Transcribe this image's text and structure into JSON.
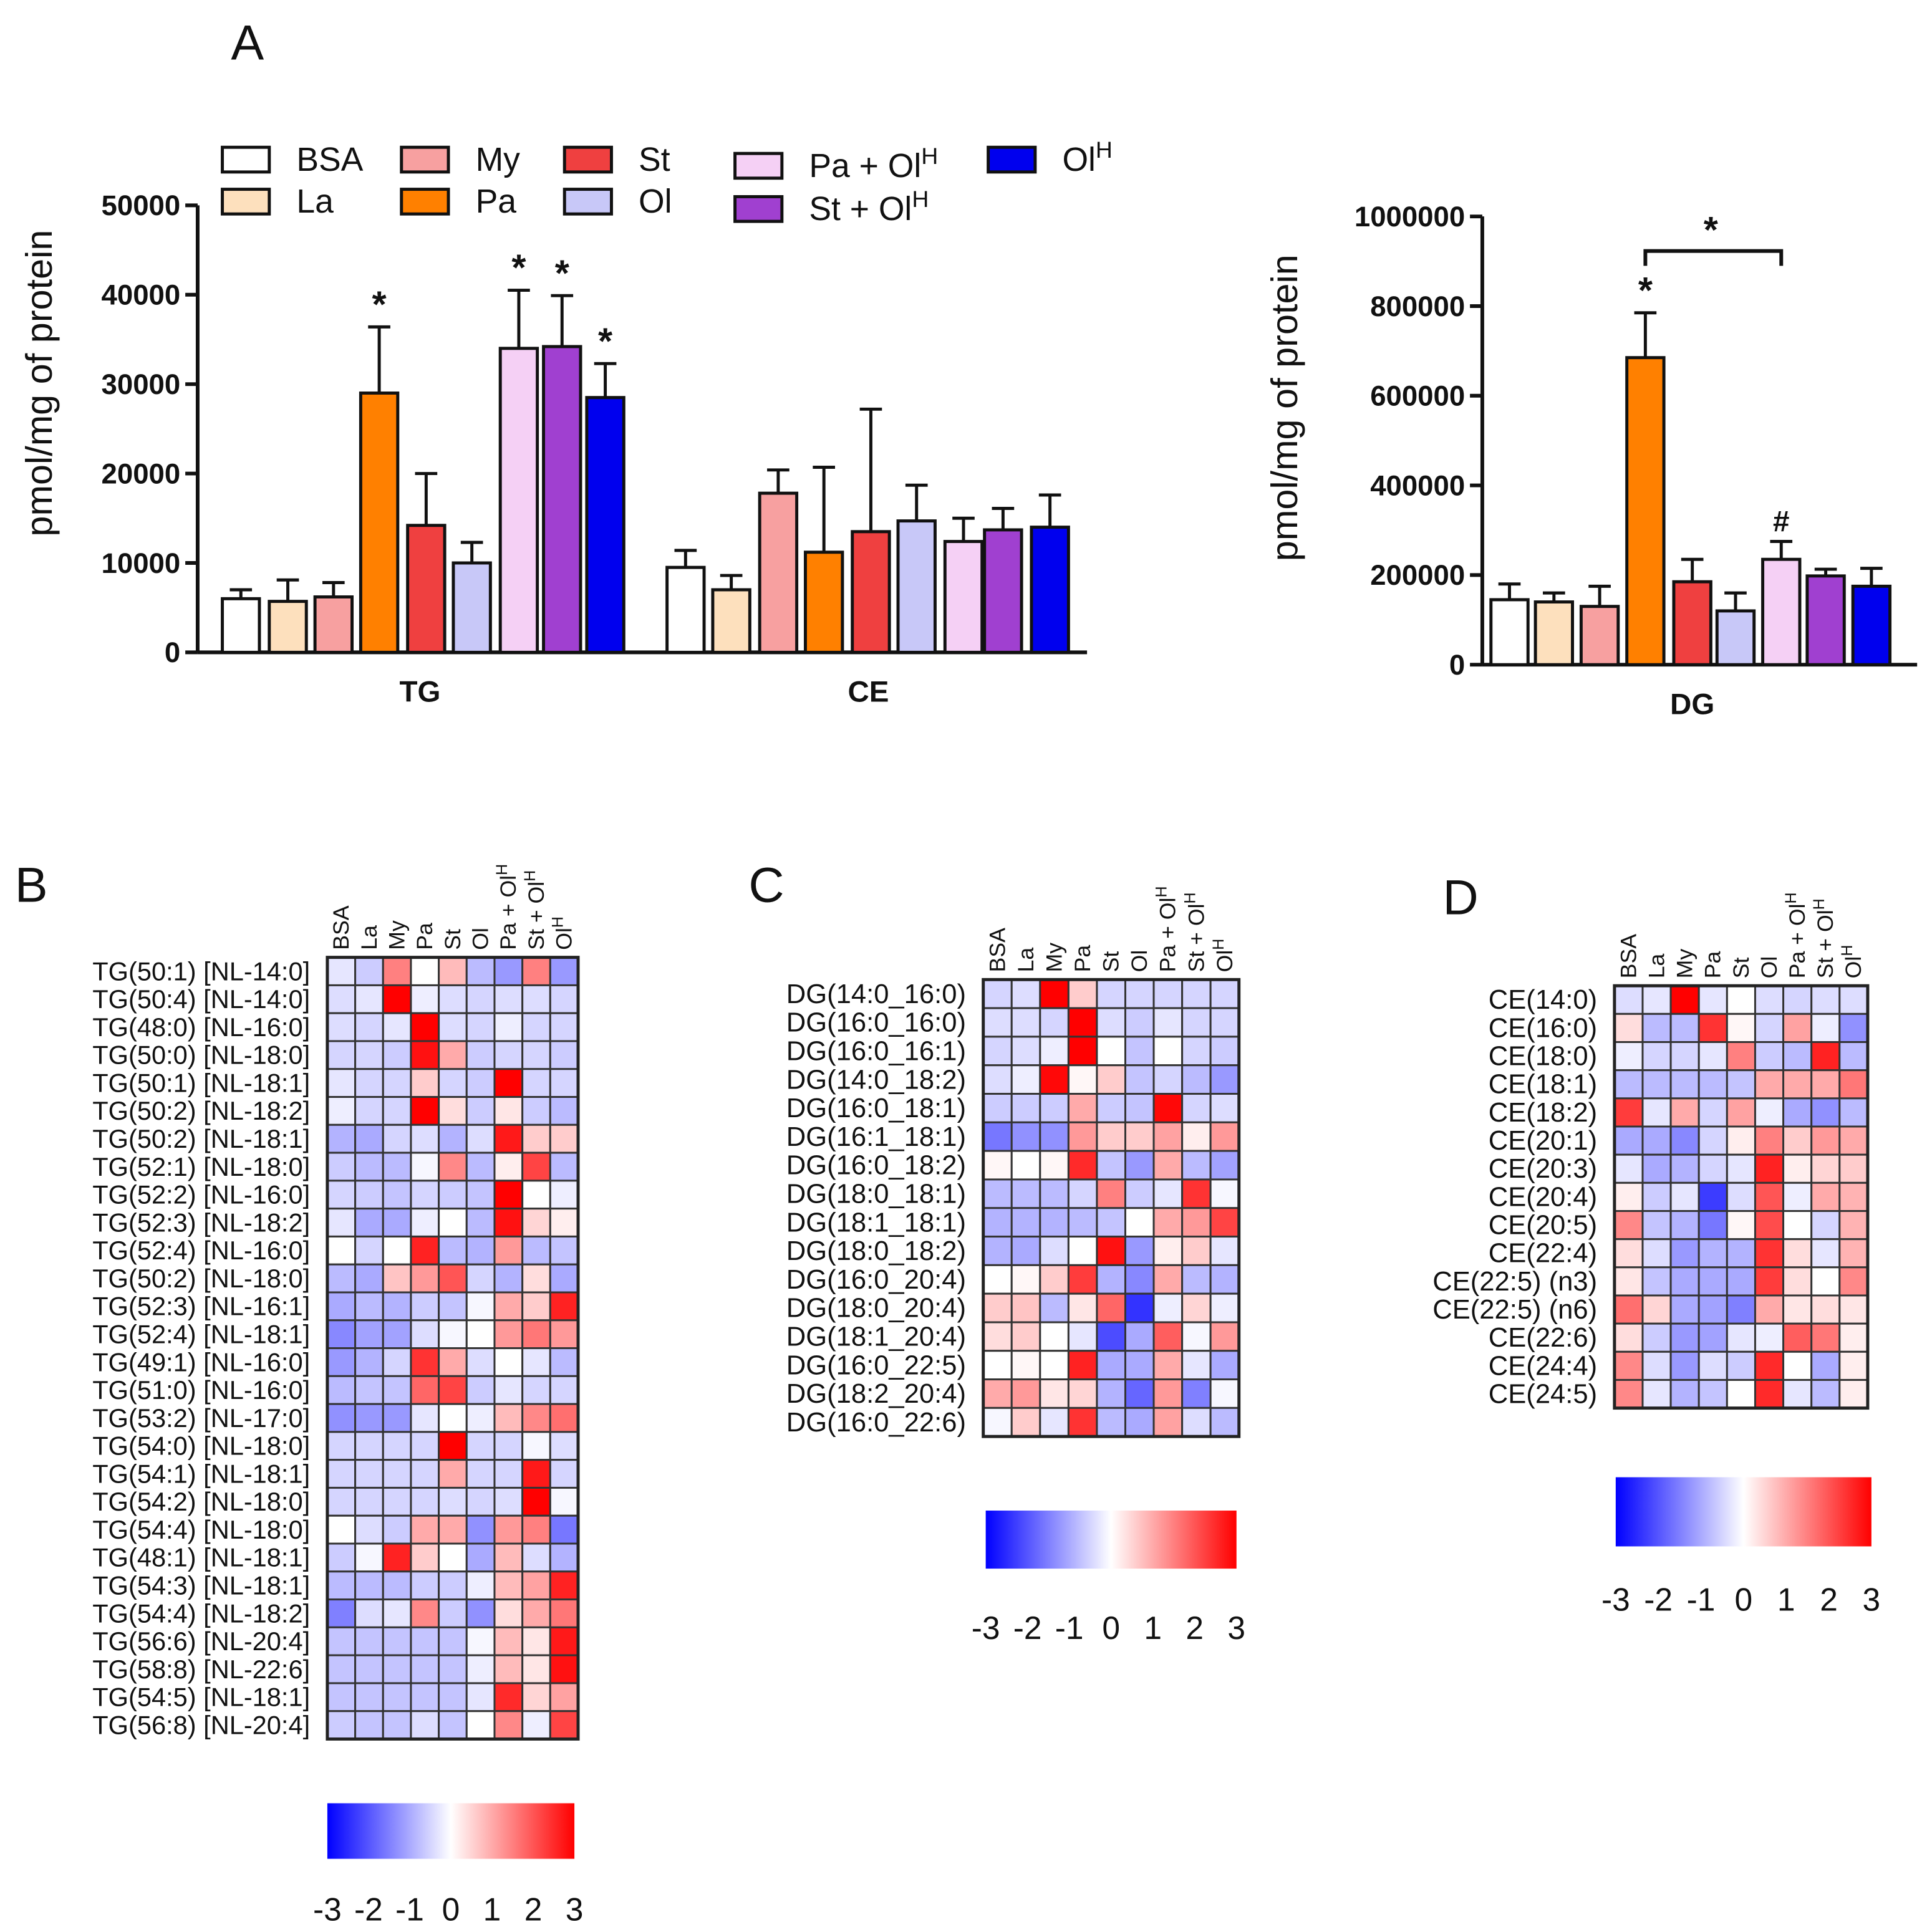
{
  "panel_labels": {
    "a": "A",
    "b": "B",
    "c": "C",
    "d": "D"
  },
  "groups": [
    {
      "name": "BSA",
      "sup": "",
      "color": "#ffffff"
    },
    {
      "name": "La",
      "sup": "",
      "color": "#fde0bd"
    },
    {
      "name": "My",
      "sup": "",
      "color": "#f7a0a0"
    },
    {
      "name": "Pa",
      "sup": "",
      "color": "#ff8000"
    },
    {
      "name": "St",
      "sup": "",
      "color": "#ef4040"
    },
    {
      "name": "Ol",
      "sup": "",
      "color": "#c8c8f8"
    },
    {
      "name": "Pa + Ol",
      "sup": "H",
      "color": "#f5d0f5"
    },
    {
      "name": "St + Ol",
      "sup": "H",
      "color": "#a040d0"
    },
    {
      "name": "Ol",
      "sup": "H",
      "color": "#0000ee"
    }
  ],
  "chart_data": [
    {
      "type": "bar",
      "title": "",
      "ylabel": "pmol/mg of protein",
      "ylim": [
        0,
        50000
      ],
      "yticks": [
        "0",
        "10000",
        "20000",
        "30000",
        "40000",
        "50000"
      ],
      "categories": [
        "TG",
        "CE"
      ],
      "series_values": [
        [
          6000,
          5700,
          6200,
          29000,
          14200,
          10000,
          34000,
          34200,
          28500
        ],
        [
          9500,
          7000,
          17800,
          11200,
          13500,
          14700,
          12400,
          13700,
          14000
        ]
      ],
      "errors": [
        [
          1000,
          2400,
          1600,
          7400,
          5800,
          2300,
          6500,
          5700,
          3800
        ],
        [
          1900,
          1600,
          2600,
          9500,
          13700,
          4000,
          2600,
          2400,
          3600
        ]
      ],
      "annotations": [
        [
          "",
          "",
          "",
          "*",
          "",
          "",
          "*",
          "*",
          "*"
        ],
        [
          "",
          "",
          "",
          "",
          "",
          "",
          "",
          "",
          ""
        ]
      ]
    },
    {
      "type": "bar",
      "ylabel": "pmol/mg of protein",
      "ylim": [
        0,
        1000000
      ],
      "yticks": [
        "0",
        "200000",
        "400000",
        "600000",
        "800000",
        "1000000"
      ],
      "categories": [
        "DG"
      ],
      "series_values": [
        [
          145000,
          140000,
          130000,
          685000,
          185000,
          120000,
          235000,
          198000,
          175000
        ]
      ],
      "errors": [
        [
          35000,
          20000,
          45000,
          100000,
          50000,
          40000,
          40000,
          15000,
          40000
        ]
      ],
      "annotations": [
        [
          "",
          "",
          "",
          "*",
          "",
          "",
          "#",
          "",
          ""
        ]
      ],
      "bracket": {
        "from": "Pa",
        "to": "Pa + OlH",
        "label": "*"
      }
    },
    {
      "type": "heatmap",
      "panel": "B",
      "scale_range": [
        -3,
        3
      ],
      "scale_ticks": [
        "-3",
        "-2",
        "-1",
        "0",
        "1",
        "2",
        "3"
      ],
      "rows": [
        "TG(50:1) [NL-14:0]",
        "TG(50:4) [NL-14:0]",
        "TG(48:0) [NL-16:0]",
        "TG(50:0) [NL-18:0]",
        "TG(50:1) [NL-18:1]",
        "TG(50:2) [NL-18:2]",
        "TG(50:2) [NL-18:1]",
        "TG(52:1) [NL-18:0]",
        "TG(52:2) [NL-16:0]",
        "TG(52:3) [NL-18:2]",
        "TG(52:4) [NL-16:0]",
        "TG(50:2) [NL-18:0]",
        "TG(52:3) [NL-16:1]",
        "TG(52:4) [NL-18:1]",
        "TG(49:1) [NL-16:0]",
        "TG(51:0) [NL-16:0]",
        "TG(53:2) [NL-17:0]",
        "TG(54:0) [NL-18:0]",
        "TG(54:1) [NL-18:1]",
        "TG(54:2) [NL-18:0]",
        "TG(54:4) [NL-18:0]",
        "TG(48:1) [NL-18:1]",
        "TG(54:3) [NL-18:1]",
        "TG(54:4) [NL-18:2]",
        "TG(56:6) [NL-20:4]",
        "TG(58:8) [NL-22:6]",
        "TG(54:5) [NL-18:1]",
        "TG(56:8) [NL-20:4]"
      ],
      "values": [
        [
          -0.3,
          -0.6,
          1.5,
          0,
          0.8,
          -0.8,
          -1.2,
          1.5,
          -1.2
        ],
        [
          -0.4,
          -0.3,
          3,
          -0.2,
          -0.4,
          -0.5,
          -0.4,
          -0.4,
          -0.5
        ],
        [
          -0.4,
          -0.5,
          -0.3,
          3,
          -0.4,
          -0.5,
          -0.2,
          -0.5,
          -0.5
        ],
        [
          -0.5,
          -0.5,
          -0.6,
          2.8,
          1,
          -0.6,
          -0.5,
          -0.5,
          -0.6
        ],
        [
          -0.3,
          -0.5,
          -0.5,
          0.6,
          -0.5,
          -0.6,
          3,
          -0.5,
          -0.5
        ],
        [
          -0.2,
          -0.5,
          -0.5,
          3,
          0.4,
          -0.6,
          0.3,
          -0.6,
          -0.8
        ],
        [
          -0.9,
          -1,
          -0.5,
          -0.4,
          -0.9,
          -0.4,
          2.7,
          0.6,
          0.6
        ],
        [
          -0.6,
          -0.8,
          -0.8,
          -0.1,
          1.4,
          -0.8,
          0.2,
          2.2,
          -0.8
        ],
        [
          -0.5,
          -0.6,
          -0.7,
          -0.5,
          -0.6,
          -0.7,
          3,
          0,
          -0.2
        ],
        [
          -0.3,
          -1,
          -1,
          -0.2,
          0,
          -0.8,
          2.8,
          0.5,
          0.2
        ],
        [
          0,
          -0.5,
          0,
          2.6,
          -0.8,
          -0.9,
          1.2,
          -0.8,
          -0.7
        ],
        [
          -0.8,
          -1,
          0.7,
          1.2,
          2,
          -0.5,
          -0.9,
          0.4,
          -1
        ],
        [
          -1,
          -0.8,
          -0.9,
          -0.6,
          -0.7,
          -0.1,
          1,
          0.6,
          2.6
        ],
        [
          -1.4,
          -1.1,
          -1.1,
          -0.4,
          -0.1,
          0,
          1.2,
          1.6,
          1.2
        ],
        [
          -1.2,
          -0.9,
          -0.5,
          2.4,
          1,
          -0.4,
          0,
          -0.3,
          -0.8
        ],
        [
          -0.8,
          -0.7,
          -0.7,
          1.8,
          2.2,
          -0.6,
          -0.3,
          -0.5,
          -0.5
        ],
        [
          -1.3,
          -1.2,
          -1.2,
          -0.3,
          0,
          -0.2,
          0.8,
          1.4,
          1.7
        ],
        [
          -0.5,
          -0.5,
          -0.5,
          -0.5,
          3,
          -0.5,
          -0.5,
          -0.1,
          -0.4
        ],
        [
          -0.5,
          -0.5,
          -0.5,
          -0.5,
          1,
          -0.5,
          -0.5,
          2.7,
          -0.5
        ],
        [
          -0.5,
          -0.5,
          -0.5,
          -0.5,
          -0.4,
          -0.5,
          -0.4,
          3,
          -0.1
        ],
        [
          0,
          -0.4,
          -0.6,
          1,
          1,
          -1.3,
          1.2,
          1.5,
          -1.6
        ],
        [
          -0.6,
          -0.1,
          2.6,
          0.6,
          0,
          -1,
          0.8,
          -0.4,
          -0.9
        ],
        [
          -0.8,
          -0.8,
          -0.8,
          -0.6,
          -0.6,
          -0.2,
          0.8,
          1.1,
          2.6
        ],
        [
          -1.5,
          -0.4,
          -0.3,
          1.4,
          -0.6,
          -1.3,
          0.4,
          1,
          1.6
        ],
        [
          -0.7,
          -0.7,
          -0.7,
          -0.7,
          -0.7,
          -0.1,
          0.8,
          0.3,
          2.7
        ],
        [
          -0.7,
          -0.7,
          -0.7,
          -0.7,
          -0.7,
          -0.2,
          0.8,
          0.3,
          2.8
        ],
        [
          -0.7,
          -0.7,
          -0.7,
          -0.7,
          -0.7,
          -0.3,
          2.5,
          0.5,
          1.1
        ],
        [
          -0.6,
          -0.7,
          -0.7,
          -0.4,
          -0.7,
          0,
          1.4,
          -0.2,
          2.2
        ]
      ]
    },
    {
      "type": "heatmap",
      "panel": "C",
      "scale_range": [
        -3,
        3
      ],
      "scale_ticks": [
        "-3",
        "-2",
        "-1",
        "0",
        "1",
        "2",
        "3"
      ],
      "rows": [
        "DG(14:0_16:0)",
        "DG(16:0_16:0)",
        "DG(16:0_16:1)",
        "DG(14:0_18:2)",
        "DG(16:0_18:1)",
        "DG(16:1_18:1)",
        "DG(16:0_18:2)",
        "DG(18:0_18:1)",
        "DG(18:1_18:1)",
        "DG(18:0_18:2)",
        "DG(16:0_20:4)",
        "DG(18:0_20:4)",
        "DG(18:1_20:4)",
        "DG(16:0_22:5)",
        "DG(18:2_20:4)",
        "DG(16:0_22:6)"
      ],
      "values": [
        [
          -0.5,
          -0.4,
          3,
          0.6,
          -0.5,
          -0.5,
          -0.5,
          -0.5,
          -0.5
        ],
        [
          -0.4,
          -0.4,
          -0.5,
          3,
          -0.4,
          -0.6,
          -0.3,
          -0.5,
          -0.5
        ],
        [
          -0.5,
          -0.4,
          -0.2,
          3,
          0,
          -0.7,
          0,
          -0.5,
          -0.6
        ],
        [
          -0.4,
          -0.2,
          2.9,
          0.1,
          0.6,
          -0.7,
          -0.5,
          -0.8,
          -1.2
        ],
        [
          -0.6,
          -0.6,
          -0.6,
          1,
          -0.6,
          -0.7,
          2.9,
          -0.5,
          -0.4
        ],
        [
          -1.6,
          -1.3,
          -1.3,
          1.2,
          0.6,
          0.6,
          1.1,
          0.2,
          1.2
        ],
        [
          0.1,
          0,
          0.1,
          2.5,
          -0.7,
          -1.2,
          1,
          -0.8,
          -1.1
        ],
        [
          -0.8,
          -0.8,
          -0.8,
          -0.5,
          1.5,
          -0.6,
          -0.3,
          2.4,
          -0.1
        ],
        [
          -0.9,
          -0.9,
          -0.9,
          -0.8,
          -0.7,
          0,
          1,
          1.2,
          2.2
        ],
        [
          -0.9,
          -1,
          -0.4,
          0,
          2.8,
          -1.2,
          0.2,
          0.6,
          -0.3
        ],
        [
          0,
          0.1,
          0.6,
          2.3,
          -0.9,
          -1.4,
          1,
          -0.8,
          -0.9
        ],
        [
          0.6,
          0.7,
          -0.8,
          0.3,
          1.8,
          -2.4,
          -0.2,
          0.5,
          -0.2
        ],
        [
          0.4,
          0.6,
          0,
          -0.3,
          -2.1,
          -1,
          1.9,
          -0.1,
          1.2
        ],
        [
          0,
          0.1,
          0,
          2.6,
          -1,
          -1,
          1,
          -0.3,
          -1
        ],
        [
          1,
          1.2,
          0.3,
          0.5,
          -0.9,
          -1.8,
          1.2,
          -1.5,
          -0.1
        ],
        [
          -0.1,
          0.6,
          -0.3,
          2.4,
          -0.8,
          -1,
          1.1,
          -0.4,
          -0.8
        ]
      ]
    },
    {
      "type": "heatmap",
      "panel": "D",
      "scale_range": [
        -3,
        3
      ],
      "scale_ticks": [
        "-3",
        "-2",
        "-1",
        "0",
        "1",
        "2",
        "3"
      ],
      "rows": [
        "CE(14:0)",
        "CE(16:0)",
        "CE(18:0)",
        "CE(18:1)",
        "CE(18:2)",
        "CE(20:1)",
        "CE(20:3)",
        "CE(20:4)",
        "CE(20:5)",
        "CE(22:4)",
        "CE(22:5) (n3)",
        "CE(22:5) (n6)",
        "CE(22:6)",
        "CE(24:4)",
        "CE(24:5)"
      ],
      "values": [
        [
          -0.4,
          -0.3,
          3,
          -0.3,
          0,
          -0.4,
          -0.5,
          -0.4,
          -0.4
        ],
        [
          0.4,
          -0.8,
          -0.8,
          2.4,
          0.1,
          -0.5,
          1.1,
          -0.2,
          -1.3
        ],
        [
          -0.2,
          -0.5,
          -0.5,
          -0.3,
          1.5,
          -0.6,
          -0.8,
          2.6,
          -0.8
        ],
        [
          -0.8,
          -0.8,
          -0.8,
          -0.8,
          -0.7,
          1,
          1,
          1,
          1.6
        ],
        [
          2.3,
          -0.3,
          1,
          -0.5,
          1.1,
          -0.2,
          -1,
          -1.3,
          -0.8
        ],
        [
          -1,
          -1,
          -1.4,
          -0.5,
          0.2,
          1.5,
          0.6,
          1.2,
          1
        ],
        [
          -0.3,
          -1,
          -0.9,
          -0.5,
          -0.3,
          2.6,
          0.2,
          0.5,
          0.6
        ],
        [
          0.2,
          -0.6,
          -0.3,
          -2.3,
          -0.4,
          2,
          -0.2,
          1,
          0.9
        ],
        [
          1.4,
          -0.7,
          -0.9,
          -1.6,
          0.1,
          2.1,
          0,
          -0.5,
          0.9
        ],
        [
          0.4,
          -0.4,
          -1.2,
          -0.9,
          -0.9,
          2.4,
          0.4,
          -0.3,
          0.9
        ],
        [
          0.3,
          -0.7,
          -1,
          -1,
          -1,
          2.3,
          0.4,
          0,
          1.4
        ],
        [
          1.7,
          0.5,
          -1,
          -1.1,
          -1.5,
          1,
          0.3,
          0.4,
          0.3
        ],
        [
          0.4,
          -0.6,
          -1.2,
          -1.1,
          -0.3,
          -0.2,
          1.9,
          1.6,
          0.2
        ],
        [
          1.4,
          -0.4,
          -1.2,
          -0.4,
          -0.6,
          2.5,
          0,
          -1,
          0.2
        ],
        [
          1.4,
          -0.3,
          -0.9,
          -0.7,
          0,
          2.5,
          -0.3,
          -0.8,
          0.2
        ]
      ]
    }
  ]
}
